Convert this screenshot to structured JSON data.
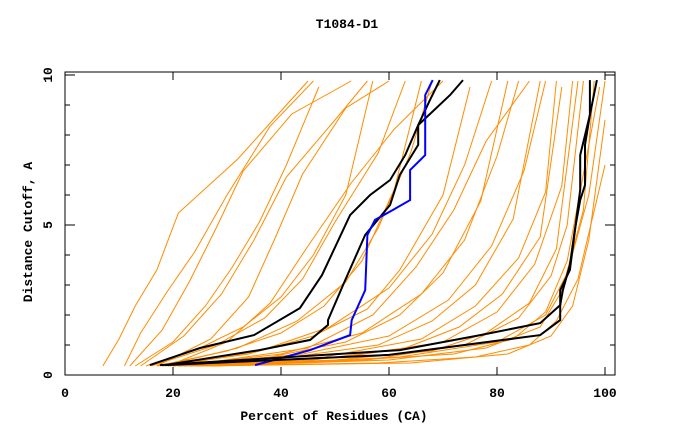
{
  "chart_data": {
    "type": "line",
    "title": "T1084-D1",
    "xlabel": "Percent of Residues (CA)",
    "ylabel": "Distance Cutoff, A",
    "xlim": [
      0,
      100
    ],
    "ylim": [
      0,
      10
    ],
    "xticks": [
      "0",
      "20",
      "40",
      "60",
      "80",
      "100"
    ],
    "yticks": [
      "0",
      "5",
      "10"
    ],
    "grid": false,
    "colors": {
      "other_models": "#ff8c00",
      "highlight_black": "#000000",
      "highlight_blue": "#0000ff"
    },
    "orange_series": [
      [
        [
          7,
          0.3
        ],
        [
          10,
          1.2
        ],
        [
          13,
          2.3
        ],
        [
          17,
          3.5
        ],
        [
          21,
          5.4
        ],
        [
          32,
          7.2
        ],
        [
          40,
          8.8
        ],
        [
          45,
          9.8
        ]
      ],
      [
        [
          11,
          0.3
        ],
        [
          14,
          1.4
        ],
        [
          19,
          2.8
        ],
        [
          24,
          4.1
        ],
        [
          30,
          6
        ],
        [
          38,
          8.3
        ],
        [
          46,
          9.8
        ]
      ],
      [
        [
          13,
          0.3
        ],
        [
          20,
          1.1
        ],
        [
          26,
          2.3
        ],
        [
          31,
          3.6
        ],
        [
          36,
          5.1
        ],
        [
          41,
          7
        ],
        [
          47,
          9.6
        ]
      ],
      [
        [
          15,
          0.3
        ],
        [
          25,
          0.9
        ],
        [
          33,
          1.6
        ],
        [
          40,
          2.6
        ],
        [
          46,
          4
        ],
        [
          52,
          6
        ],
        [
          57,
          9.8
        ]
      ],
      [
        [
          17,
          0.3
        ],
        [
          30,
          0.8
        ],
        [
          40,
          1.4
        ],
        [
          48,
          2.3
        ],
        [
          55,
          3.8
        ],
        [
          61,
          6.2
        ],
        [
          66,
          9.8
        ]
      ],
      [
        [
          18,
          0.3
        ],
        [
          34,
          0.7
        ],
        [
          46,
          1.3
        ],
        [
          56,
          2.2
        ],
        [
          62,
          3.5
        ],
        [
          70,
          6
        ],
        [
          75,
          9.6
        ]
      ],
      [
        [
          19,
          0.3
        ],
        [
          38,
          0.6
        ],
        [
          52,
          1.1
        ],
        [
          62,
          2
        ],
        [
          70,
          3.4
        ],
        [
          77,
          5.8
        ],
        [
          82,
          9.8
        ]
      ],
      [
        [
          20,
          0.3
        ],
        [
          42,
          0.6
        ],
        [
          58,
          1
        ],
        [
          68,
          1.8
        ],
        [
          76,
          3
        ],
        [
          83,
          5.2
        ],
        [
          88,
          9.8
        ]
      ],
      [
        [
          21,
          0.3
        ],
        [
          46,
          0.5
        ],
        [
          63,
          0.9
        ],
        [
          73,
          1.6
        ],
        [
          81,
          2.7
        ],
        [
          88,
          4.6
        ],
        [
          92,
          9.6
        ]
      ],
      [
        [
          22,
          0.3
        ],
        [
          50,
          0.5
        ],
        [
          68,
          0.8
        ],
        [
          78,
          1.4
        ],
        [
          86,
          2.4
        ],
        [
          91,
          4.2
        ],
        [
          95,
          9.8
        ]
      ],
      [
        [
          23,
          0.3
        ],
        [
          54,
          0.5
        ],
        [
          72,
          0.7
        ],
        [
          83,
          1.2
        ],
        [
          89,
          2.1
        ],
        [
          93,
          3.8
        ],
        [
          99,
          9.6
        ]
      ],
      [
        [
          24,
          0.3
        ],
        [
          58,
          0.4
        ],
        [
          76,
          0.6
        ],
        [
          86,
          1
        ],
        [
          91,
          1.8
        ],
        [
          95,
          3.2
        ],
        [
          100,
          7
        ]
      ],
      [
        [
          16,
          0.3
        ],
        [
          28,
          1
        ],
        [
          37,
          1.9
        ],
        [
          44,
          3.2
        ],
        [
          50,
          5.1
        ],
        [
          58,
          7.4
        ],
        [
          63,
          9.8
        ]
      ],
      [
        [
          14,
          0.3
        ],
        [
          22,
          1.3
        ],
        [
          29,
          2.7
        ],
        [
          35,
          4.5
        ],
        [
          41,
          6.6
        ],
        [
          50,
          8.5
        ],
        [
          56,
          9.8
        ]
      ],
      [
        [
          12,
          0.3
        ],
        [
          18,
          1.5
        ],
        [
          23,
          3.1
        ],
        [
          28,
          4.9
        ],
        [
          33,
          6.8
        ],
        [
          42,
          8.7
        ],
        [
          53,
          9.8
        ]
      ],
      [
        [
          20,
          0.3
        ],
        [
          36,
          0.8
        ],
        [
          49,
          1.6
        ],
        [
          60,
          2.9
        ],
        [
          68,
          4.7
        ],
        [
          74,
          7
        ],
        [
          79,
          9.8
        ]
      ],
      [
        [
          22,
          0.3
        ],
        [
          44,
          0.7
        ],
        [
          60,
          1.3
        ],
        [
          71,
          2.5
        ],
        [
          79,
          4.3
        ],
        [
          85,
          6.8
        ],
        [
          89,
          9.8
        ]
      ],
      [
        [
          25,
          0.3
        ],
        [
          52,
          0.6
        ],
        [
          70,
          1.1
        ],
        [
          80,
          2.1
        ],
        [
          87,
          3.7
        ],
        [
          92,
          6.3
        ],
        [
          94,
          9.8
        ]
      ],
      [
        [
          27,
          0.3
        ],
        [
          60,
          0.5
        ],
        [
          78,
          0.9
        ],
        [
          88,
          1.6
        ],
        [
          92,
          2.8
        ],
        [
          96,
          5.5
        ],
        [
          98,
          9.8
        ]
      ],
      [
        [
          26,
          0.3
        ],
        [
          64,
          0.4
        ],
        [
          82,
          0.7
        ],
        [
          90,
          1.3
        ],
        [
          94,
          2.3
        ],
        [
          97,
          4.5
        ],
        [
          100,
          8.5
        ]
      ],
      [
        [
          18,
          0.3
        ],
        [
          32,
          0.9
        ],
        [
          43,
          1.8
        ],
        [
          52,
          3.1
        ],
        [
          58,
          4.9
        ],
        [
          64,
          7.4
        ],
        [
          68,
          9.8
        ]
      ],
      [
        [
          21,
          0.3
        ],
        [
          40,
          0.7
        ],
        [
          55,
          1.4
        ],
        [
          66,
          2.7
        ],
        [
          74,
          4.5
        ],
        [
          80,
          7.3
        ],
        [
          84,
          9.8
        ]
      ],
      [
        [
          23,
          0.3
        ],
        [
          48,
          0.6
        ],
        [
          66,
          1.2
        ],
        [
          76,
          2.3
        ],
        [
          84,
          3.9
        ],
        [
          89,
          6.1
        ],
        [
          91,
          9.8
        ]
      ],
      [
        [
          19,
          0.3
        ],
        [
          30,
          1.1
        ],
        [
          38,
          2.4
        ],
        [
          45,
          4.3
        ],
        [
          53,
          6.4
        ],
        [
          61,
          8.2
        ],
        [
          70,
          9.8
        ]
      ],
      [
        [
          24,
          0.3
        ],
        [
          56,
          0.5
        ],
        [
          74,
          1
        ],
        [
          84,
          1.9
        ],
        [
          90,
          3.3
        ],
        [
          93,
          5
        ],
        [
          96,
          9.8
        ]
      ],
      [
        [
          28,
          0.3
        ],
        [
          62,
          0.6
        ],
        [
          80,
          1.1
        ],
        [
          89,
          2
        ],
        [
          93,
          3.4
        ],
        [
          97,
          6
        ],
        [
          100,
          9.8
        ]
      ],
      [
        [
          17,
          0.3
        ],
        [
          27,
          1.2
        ],
        [
          34,
          2.6
        ],
        [
          39,
          4.6
        ],
        [
          44,
          6.7
        ],
        [
          52,
          8.9
        ],
        [
          60,
          9.8
        ]
      ],
      [
        [
          22,
          0.3
        ],
        [
          45,
          0.9
        ],
        [
          57,
          2
        ],
        [
          65,
          3.6
        ],
        [
          72,
          5.5
        ],
        [
          78,
          7.8
        ],
        [
          86,
          9.8
        ]
      ]
    ],
    "highlight_series": [
      {
        "color": "#000000",
        "points": [
          [
            15.7,
            0.33
          ],
          [
            25,
            0.9
          ],
          [
            35,
            1.33
          ],
          [
            43.5,
            2.23
          ],
          [
            47.6,
            3.33
          ],
          [
            52.8,
            5.33
          ],
          [
            56.5,
            6
          ],
          [
            60.2,
            6.5
          ],
          [
            63,
            7.33
          ],
          [
            65.4,
            8.33
          ],
          [
            71.3,
            9.33
          ],
          [
            73.7,
            9.83
          ]
        ]
      },
      {
        "color": "#000000",
        "points": [
          [
            18.5,
            0.33
          ],
          [
            36,
            0.83
          ],
          [
            45.4,
            1.17
          ],
          [
            48.7,
            1.67
          ],
          [
            48.7,
            1.83
          ],
          [
            51.9,
            3.17
          ],
          [
            55.6,
            4.67
          ],
          [
            60.2,
            5.67
          ],
          [
            62,
            6.67
          ],
          [
            65.4,
            7.67
          ],
          [
            65.4,
            8.33
          ],
          [
            67.6,
            9.17
          ],
          [
            69.4,
            9.83
          ]
        ]
      },
      {
        "color": "#0000ff",
        "points": [
          [
            35.2,
            0.33
          ],
          [
            45.4,
            0.83
          ],
          [
            52.8,
            1.33
          ],
          [
            53.1,
            1.83
          ],
          [
            55.6,
            2.83
          ],
          [
            56,
            4.67
          ],
          [
            57.4,
            5.17
          ],
          [
            60.7,
            5.5
          ],
          [
            63.9,
            5.83
          ],
          [
            63.9,
            6.83
          ],
          [
            66.7,
            7.33
          ],
          [
            66.7,
            9.33
          ],
          [
            68.1,
            9.83
          ]
        ]
      },
      {
        "color": "#000000",
        "points": [
          [
            17.6,
            0.33
          ],
          [
            62,
            0.83
          ],
          [
            76.9,
            1.33
          ],
          [
            88,
            1.73
          ],
          [
            91.7,
            2.33
          ],
          [
            92.2,
            2.83
          ],
          [
            93.5,
            3.67
          ],
          [
            94.4,
            4.83
          ],
          [
            95.4,
            5.83
          ],
          [
            96.3,
            6.33
          ],
          [
            96.3,
            7.67
          ],
          [
            97.2,
            8.67
          ],
          [
            98.5,
            9.83
          ]
        ]
      },
      {
        "color": "#000000",
        "points": [
          [
            18.5,
            0.33
          ],
          [
            60,
            0.67
          ],
          [
            88,
            1.33
          ],
          [
            91.7,
            1.83
          ],
          [
            91.7,
            2.83
          ],
          [
            93.5,
            3.5
          ],
          [
            94.1,
            4.33
          ],
          [
            94.8,
            5.33
          ],
          [
            95.4,
            6.17
          ],
          [
            95.4,
            7.33
          ],
          [
            97.2,
            8.67
          ],
          [
            97.2,
            9.83
          ]
        ]
      }
    ]
  }
}
